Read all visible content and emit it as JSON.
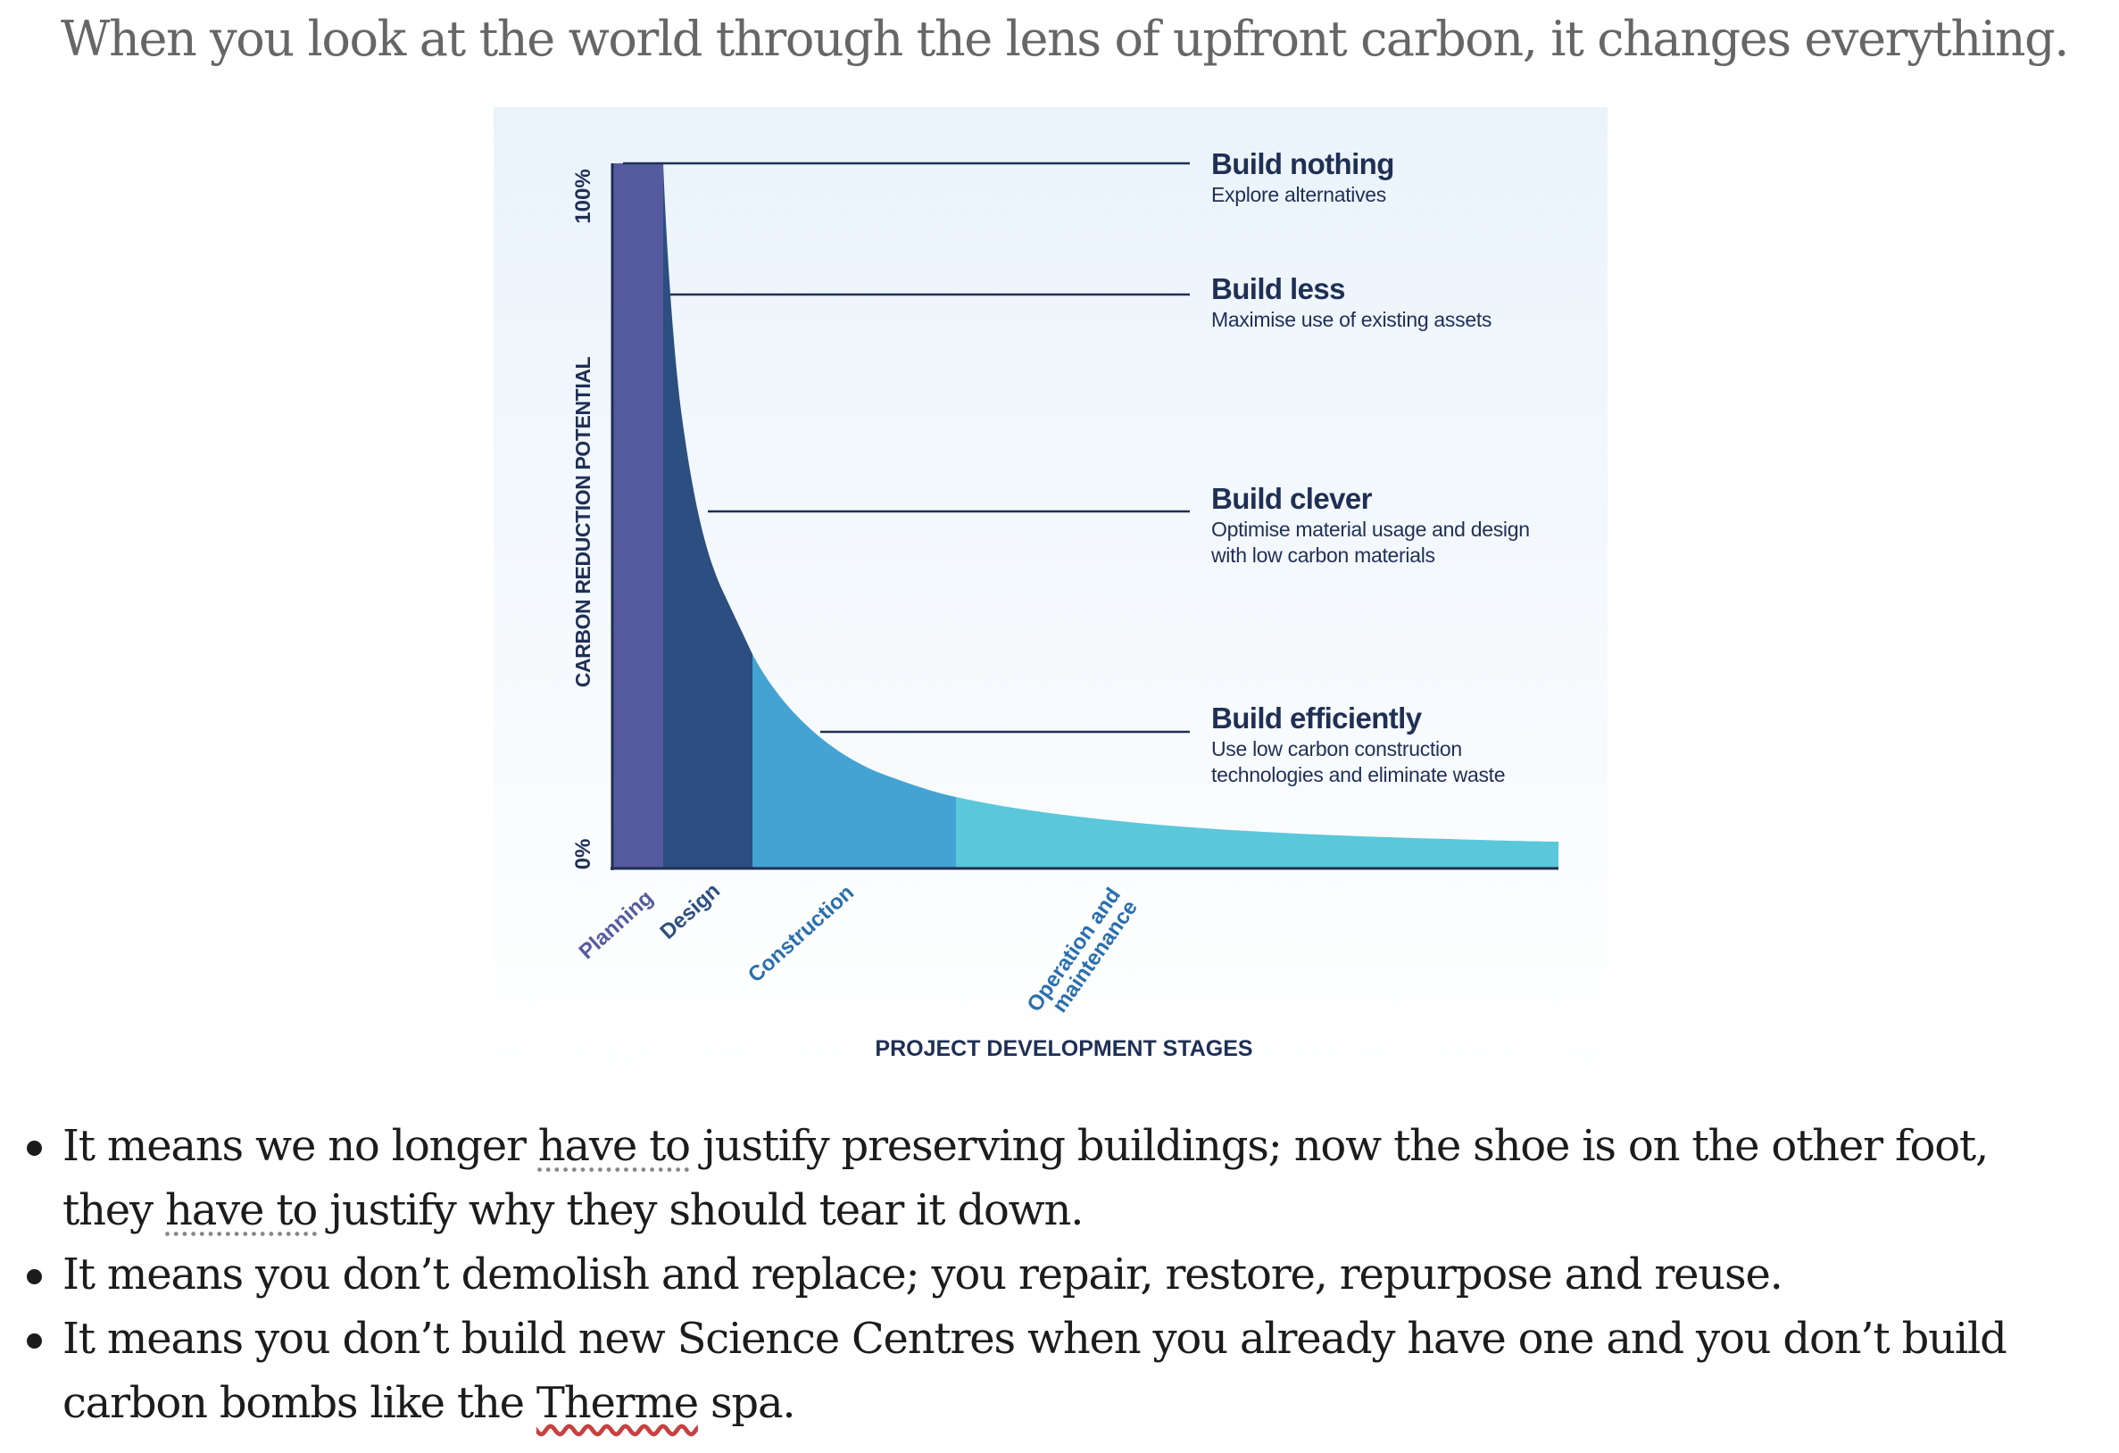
{
  "heading": "When you look at the world through the lens of upfront carbon, it changes everything.",
  "figure": {
    "y_axis_label": "CARBON REDUCTION POTENTIAL",
    "y_ticks": [
      "100%",
      "0%"
    ],
    "x_axis_label": "PROJECT DEVELOPMENT STAGES",
    "stages": [
      {
        "label": "Planning",
        "color": "#555b9e"
      },
      {
        "label": "Design",
        "color": "#2c4e80"
      },
      {
        "label": "Construction",
        "color": "#44a3d3"
      },
      {
        "label_line1": "Operation and",
        "label_line2": "maintenance",
        "color": "#5bc7da"
      }
    ],
    "strategies": [
      {
        "title": "Build nothing",
        "lines": [
          "Explore alternatives"
        ]
      },
      {
        "title": "Build less",
        "lines": [
          "Maximise use of existing assets"
        ]
      },
      {
        "title": "Build clever",
        "lines": [
          "Optimise material usage and design",
          "with low carbon materials"
        ]
      },
      {
        "title": "Build efficiently",
        "lines": [
          "Use low carbon construction",
          "technologies and eliminate waste"
        ]
      }
    ]
  },
  "bullets": [
    {
      "p1": "It means we no longer ",
      "u1": "have to",
      "p2": " justify preserving buildings; now the shoe is on the other foot,",
      "p3": "they ",
      "u2": "have to",
      "p4": " justify why they should tear it down."
    },
    {
      "text": "It means you don’t demolish and replace; you repair, restore, repurpose and reuse."
    },
    {
      "p1": "It means you don’t build new Science Centres when you already have one and you don’t build",
      "p2": "carbon bombs like the ",
      "u": "Therme",
      "p3": " spa."
    }
  ]
}
